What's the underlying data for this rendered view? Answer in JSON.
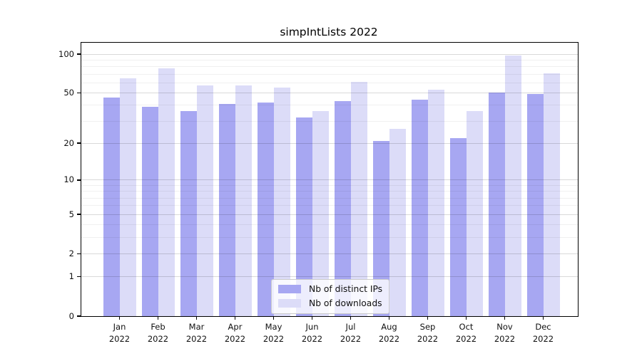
{
  "title": "simpIntLists 2022",
  "colors": {
    "distinct_ips": "#a7a7f2",
    "downloads": "#dcdcf8",
    "axis": "#000000",
    "text": "#111111",
    "grid_major": "rgba(0,0,0,0.15)",
    "grid_minor": "rgba(0,0,0,0.06)",
    "legend_border": "#cccccc",
    "legend_bg": "rgba(255,255,255,0.8)"
  },
  "legend": {
    "items": [
      {
        "label": "Nb of distinct IPs",
        "series": "distinct_ips"
      },
      {
        "label": "Nb of downloads",
        "series": "downloads"
      }
    ]
  },
  "y_axis": {
    "scale": "log1p",
    "major_ticks": [
      100,
      50,
      20,
      10,
      5,
      2,
      1,
      0
    ],
    "minor_ticks": [
      90,
      80,
      70,
      60,
      40,
      30,
      9,
      8,
      7,
      6,
      4,
      3
    ]
  },
  "x_axis": {
    "year": "2022",
    "months": [
      "Jan",
      "Feb",
      "Mar",
      "Apr",
      "May",
      "Jun",
      "Jul",
      "Aug",
      "Sep",
      "Oct",
      "Nov",
      "Dec"
    ]
  },
  "chart_data": {
    "type": "bar",
    "title": "simpIntLists 2022",
    "categories": [
      "Jan 2022",
      "Feb 2022",
      "Mar 2022",
      "Apr 2022",
      "May 2022",
      "Jun 2022",
      "Jul 2022",
      "Aug 2022",
      "Sep 2022",
      "Oct 2022",
      "Nov 2022",
      "Dec 2022"
    ],
    "series": [
      {
        "name": "Nb of distinct IPs",
        "values": [
          46,
          39,
          36,
          41,
          42,
          32,
          43,
          21,
          44,
          22,
          50,
          49
        ]
      },
      {
        "name": "Nb of downloads",
        "values": [
          65,
          78,
          57,
          57,
          55,
          36,
          61,
          26,
          53,
          36,
          97,
          71
        ]
      }
    ],
    "yscale": "log1p",
    "ylim": [
      0,
      123
    ],
    "ytick_values": [
      0,
      1,
      2,
      5,
      10,
      20,
      50,
      100
    ],
    "grid": "on",
    "legend_position": "lower center"
  }
}
